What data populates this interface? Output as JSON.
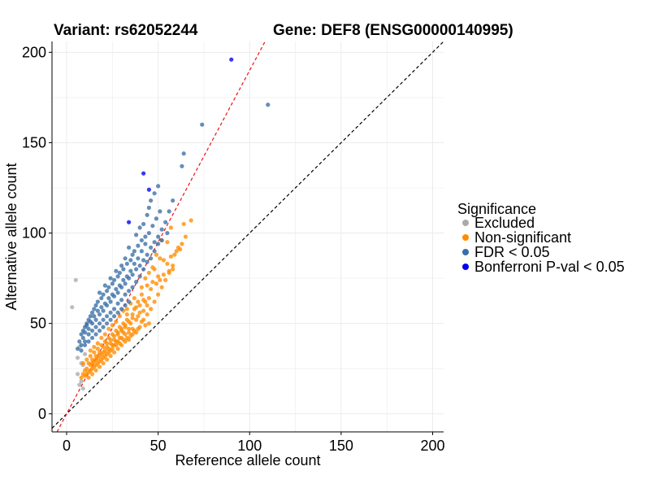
{
  "chart_data": {
    "type": "scatter",
    "title_left": "Variant: rs62052244",
    "title_right": "Gene: DEF8 (ENSG00000140995)",
    "xlabel": "Reference allele count",
    "ylabel": "Alternative allele count",
    "xlim": [
      -8,
      206
    ],
    "ylim": [
      -10,
      206
    ],
    "x_ticks": [
      0,
      50,
      100,
      150,
      200
    ],
    "y_ticks": [
      0,
      50,
      100,
      150,
      200
    ],
    "reference_lines": [
      {
        "name": "identity",
        "slope": 1,
        "intercept": 0,
        "color": "#000000",
        "style": "dashed"
      },
      {
        "name": "fit",
        "slope": 1.9,
        "intercept": 0,
        "color": "#ee1111",
        "style": "dashed"
      }
    ],
    "legend": {
      "title": "Significance",
      "position": "right",
      "items": [
        {
          "label": "Excluded",
          "color": "#aaaaaa"
        },
        {
          "label": "Non-significant",
          "color": "#ff8c00"
        },
        {
          "label": "FDR < 0.05",
          "color": "#3a6ea5"
        },
        {
          "label": "Bonferroni P-val < 0.05",
          "color": "#0000ee"
        }
      ]
    },
    "series": [
      {
        "name": "Excluded",
        "color": "#aaaaaa",
        "points": [
          [
            5,
            74
          ],
          [
            3,
            59
          ],
          [
            7,
            37
          ],
          [
            6,
            31
          ],
          [
            8,
            28
          ],
          [
            9,
            27
          ],
          [
            8,
            18
          ],
          [
            7,
            16
          ],
          [
            9,
            14
          ],
          [
            6,
            22
          ],
          [
            10,
            33
          ]
        ]
      },
      {
        "name": "Non-significant",
        "color": "#ff8c00",
        "points": [
          [
            68,
            107
          ],
          [
            64,
            105
          ],
          [
            62,
            91
          ],
          [
            60,
            90
          ],
          [
            57,
            103
          ],
          [
            55,
            95
          ],
          [
            52,
            96
          ],
          [
            58,
            82
          ],
          [
            53,
            85
          ],
          [
            56,
            79
          ],
          [
            51,
            86
          ],
          [
            50,
            76
          ],
          [
            49,
            88
          ],
          [
            48,
            80
          ],
          [
            47,
            73
          ],
          [
            46,
            69
          ],
          [
            45,
            64
          ],
          [
            44,
            71
          ],
          [
            43,
            62
          ],
          [
            42,
            57
          ],
          [
            41,
            66
          ],
          [
            40,
            60
          ],
          [
            39,
            54
          ],
          [
            38,
            52
          ],
          [
            37,
            58
          ],
          [
            36,
            55
          ],
          [
            35,
            50
          ],
          [
            34,
            47
          ],
          [
            33,
            52
          ],
          [
            32,
            48
          ],
          [
            31,
            45
          ],
          [
            30,
            46
          ],
          [
            29,
            42
          ],
          [
            28,
            44
          ],
          [
            27,
            40
          ],
          [
            26,
            43
          ],
          [
            25,
            38
          ],
          [
            24,
            41
          ],
          [
            23,
            36
          ],
          [
            22,
            39
          ],
          [
            21,
            35
          ],
          [
            20,
            37
          ],
          [
            19,
            33
          ],
          [
            18,
            34
          ],
          [
            17,
            31
          ],
          [
            16,
            32
          ],
          [
            15,
            29
          ],
          [
            14,
            30
          ],
          [
            13,
            27
          ],
          [
            12,
            28
          ],
          [
            11,
            25
          ],
          [
            10,
            24
          ],
          [
            9,
            22
          ],
          [
            8,
            20
          ],
          [
            40,
            48
          ],
          [
            38,
            45
          ],
          [
            36,
            44
          ],
          [
            34,
            41
          ],
          [
            32,
            40
          ],
          [
            30,
            38
          ],
          [
            28,
            36
          ],
          [
            26,
            34
          ],
          [
            24,
            32
          ],
          [
            22,
            30
          ],
          [
            20,
            28
          ],
          [
            18,
            26
          ],
          [
            16,
            24
          ],
          [
            14,
            22
          ],
          [
            12,
            20
          ],
          [
            42,
            52
          ],
          [
            44,
            55
          ],
          [
            46,
            58
          ],
          [
            48,
            62
          ],
          [
            50,
            66
          ],
          [
            52,
            70
          ],
          [
            54,
            74
          ],
          [
            56,
            78
          ],
          [
            58,
            80
          ],
          [
            45,
            50
          ],
          [
            43,
            49
          ],
          [
            41,
            51
          ],
          [
            39,
            47
          ],
          [
            37,
            46
          ],
          [
            35,
            43
          ],
          [
            33,
            42
          ],
          [
            31,
            41
          ],
          [
            29,
            39
          ],
          [
            27,
            38
          ],
          [
            25,
            36
          ],
          [
            23,
            34
          ],
          [
            21,
            32
          ],
          [
            19,
            30
          ],
          [
            17,
            28
          ],
          [
            15,
            26
          ],
          [
            13,
            24
          ],
          [
            11,
            22
          ],
          [
            37,
            64
          ],
          [
            35,
            61
          ],
          [
            33,
            58
          ],
          [
            31,
            57
          ],
          [
            29,
            54
          ],
          [
            27,
            51
          ],
          [
            25,
            49
          ],
          [
            23,
            47
          ],
          [
            21,
            44
          ],
          [
            19,
            42
          ],
          [
            17,
            39
          ],
          [
            15,
            37
          ],
          [
            13,
            35
          ],
          [
            39,
            62
          ],
          [
            41,
            70
          ],
          [
            43,
            75
          ],
          [
            45,
            78
          ],
          [
            47,
            81
          ],
          [
            49,
            72
          ],
          [
            51,
            74
          ],
          [
            53,
            77
          ],
          [
            55,
            83
          ],
          [
            57,
            87
          ],
          [
            59,
            88
          ],
          [
            61,
            92
          ],
          [
            63,
            94
          ],
          [
            65,
            98
          ],
          [
            33,
            55
          ],
          [
            31,
            50
          ],
          [
            29,
            48
          ],
          [
            27,
            46
          ],
          [
            25,
            44
          ],
          [
            23,
            42
          ],
          [
            21,
            40
          ],
          [
            19,
            38
          ],
          [
            17,
            36
          ],
          [
            15,
            34
          ],
          [
            13,
            32
          ],
          [
            11,
            30
          ],
          [
            9,
            28
          ],
          [
            36,
            47
          ],
          [
            34,
            45
          ],
          [
            32,
            44
          ],
          [
            30,
            42
          ],
          [
            28,
            40
          ],
          [
            26,
            38
          ],
          [
            24,
            35
          ],
          [
            22,
            33
          ],
          [
            20,
            31
          ],
          [
            18,
            29
          ],
          [
            16,
            27
          ],
          [
            14,
            25
          ],
          [
            12,
            23
          ],
          [
            10,
            21
          ],
          [
            44,
            60
          ],
          [
            42,
            63
          ],
          [
            40,
            56
          ],
          [
            38,
            59
          ],
          [
            36,
            53
          ],
          [
            34,
            51
          ],
          [
            32,
            49
          ],
          [
            30,
            47
          ],
          [
            28,
            45
          ],
          [
            26,
            41
          ],
          [
            24,
            39
          ],
          [
            22,
            37
          ],
          [
            20,
            34
          ],
          [
            18,
            32
          ],
          [
            16,
            30
          ],
          [
            14,
            28
          ]
        ]
      },
      {
        "name": "FDR < 0.05",
        "color": "#3a6ea5",
        "points": [
          [
            110,
            171
          ],
          [
            74,
            160
          ],
          [
            64,
            144
          ],
          [
            63,
            137
          ],
          [
            50,
            126
          ],
          [
            48,
            122
          ],
          [
            46,
            118
          ],
          [
            45,
            114
          ],
          [
            44,
            110
          ],
          [
            42,
            105
          ],
          [
            40,
            103
          ],
          [
            43,
            98
          ],
          [
            41,
            96
          ],
          [
            38,
            99
          ],
          [
            39,
            93
          ],
          [
            37,
            90
          ],
          [
            36,
            88
          ],
          [
            34,
            92
          ],
          [
            35,
            85
          ],
          [
            33,
            83
          ],
          [
            32,
            86
          ],
          [
            31,
            80
          ],
          [
            30,
            82
          ],
          [
            29,
            78
          ],
          [
            28,
            76
          ],
          [
            27,
            79
          ],
          [
            26,
            74
          ],
          [
            25,
            72
          ],
          [
            24,
            75
          ],
          [
            23,
            70
          ],
          [
            22,
            68
          ],
          [
            21,
            71
          ],
          [
            20,
            66
          ],
          [
            19,
            64
          ],
          [
            18,
            67
          ],
          [
            17,
            62
          ],
          [
            16,
            60
          ],
          [
            15,
            58
          ],
          [
            14,
            56
          ],
          [
            13,
            54
          ],
          [
            12,
            52
          ],
          [
            11,
            50
          ],
          [
            10,
            48
          ],
          [
            9,
            46
          ],
          [
            8,
            44
          ],
          [
            44,
            88
          ],
          [
            42,
            85
          ],
          [
            40,
            82
          ],
          [
            38,
            80
          ],
          [
            36,
            77
          ],
          [
            34,
            75
          ],
          [
            32,
            72
          ],
          [
            30,
            70
          ],
          [
            28,
            67
          ],
          [
            26,
            65
          ],
          [
            24,
            62
          ],
          [
            22,
            60
          ],
          [
            20,
            57
          ],
          [
            18,
            55
          ],
          [
            16,
            52
          ],
          [
            14,
            50
          ],
          [
            12,
            47
          ],
          [
            10,
            45
          ],
          [
            46,
            92
          ],
          [
            48,
            95
          ],
          [
            50,
            98
          ],
          [
            52,
            102
          ],
          [
            54,
            106
          ],
          [
            56,
            112
          ],
          [
            58,
            118
          ],
          [
            47,
            104
          ],
          [
            49,
            108
          ],
          [
            51,
            112
          ],
          [
            45,
            100
          ],
          [
            43,
            94
          ],
          [
            41,
            90
          ],
          [
            39,
            86
          ],
          [
            37,
            83
          ],
          [
            35,
            79
          ],
          [
            33,
            76
          ],
          [
            31,
            74
          ],
          [
            29,
            71
          ],
          [
            27,
            69
          ],
          [
            25,
            66
          ],
          [
            23,
            64
          ],
          [
            21,
            61
          ],
          [
            19,
            59
          ],
          [
            17,
            57
          ],
          [
            15,
            54
          ],
          [
            13,
            51
          ],
          [
            11,
            49
          ],
          [
            9,
            42
          ],
          [
            7,
            40
          ],
          [
            40,
            76
          ],
          [
            38,
            73
          ],
          [
            36,
            70
          ],
          [
            34,
            68
          ],
          [
            32,
            66
          ],
          [
            30,
            63
          ],
          [
            28,
            61
          ],
          [
            26,
            58
          ],
          [
            24,
            56
          ],
          [
            22,
            54
          ],
          [
            20,
            52
          ],
          [
            18,
            50
          ],
          [
            16,
            48
          ],
          [
            14,
            46
          ],
          [
            12,
            44
          ],
          [
            10,
            40
          ],
          [
            8,
            38
          ],
          [
            6,
            36
          ],
          [
            34,
            62
          ],
          [
            32,
            60
          ],
          [
            30,
            58
          ],
          [
            28,
            56
          ],
          [
            26,
            54
          ],
          [
            24,
            52
          ],
          [
            22,
            50
          ],
          [
            20,
            48
          ],
          [
            18,
            46
          ],
          [
            16,
            44
          ],
          [
            14,
            42
          ],
          [
            12,
            40
          ],
          [
            10,
            38
          ],
          [
            8,
            35
          ],
          [
            42,
            80
          ],
          [
            44,
            84
          ],
          [
            46,
            86
          ],
          [
            48,
            90
          ],
          [
            50,
            94
          ],
          [
            52,
            96
          ],
          [
            55,
            100
          ]
        ]
      },
      {
        "name": "Bonferroni P-val < 0.05",
        "color": "#0000ee",
        "points": [
          [
            90,
            196
          ],
          [
            42,
            133
          ],
          [
            45,
            124
          ],
          [
            34,
            106
          ]
        ]
      }
    ]
  }
}
